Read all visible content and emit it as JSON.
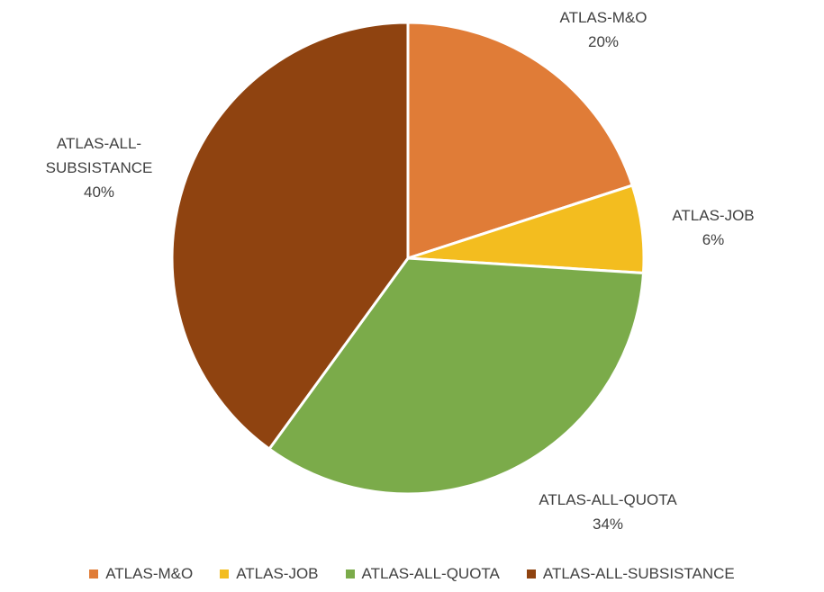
{
  "chart_data": {
    "type": "pie",
    "categories": [
      "ATLAS-M&O",
      "ATLAS-JOB",
      "ATLAS-ALL-QUOTA",
      "ATLAS-ALL-SUBSISTANCE"
    ],
    "values": [
      20,
      6,
      34,
      40
    ],
    "value_labels": [
      "20%",
      "6%",
      "34%",
      "40%"
    ],
    "colors": [
      "#e07c37",
      "#f3bd1f",
      "#7bab4a",
      "#8f4310"
    ],
    "legend": "bottom"
  }
}
